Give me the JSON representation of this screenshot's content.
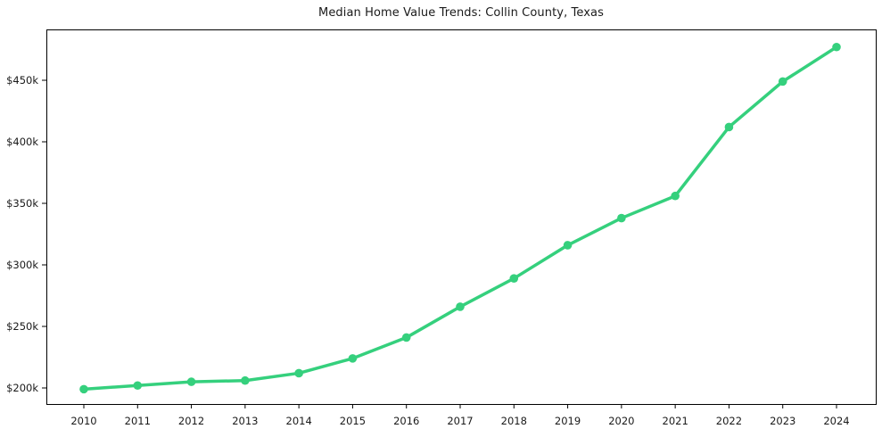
{
  "window": {
    "background_color": "#ffffff"
  },
  "chart_data": {
    "type": "line",
    "title": "Median Home Value Trends: Collin County, Texas",
    "xlabel": "",
    "ylabel": "",
    "categories": [
      "2010",
      "2011",
      "2012",
      "2013",
      "2014",
      "2015",
      "2016",
      "2017",
      "2018",
      "2019",
      "2020",
      "2021",
      "2022",
      "2023",
      "2024"
    ],
    "series": [
      {
        "name": "Median Home Value",
        "values": [
          199,
          202,
          205,
          206,
          212,
          224,
          241,
          266,
          289,
          316,
          338,
          356,
          412,
          449,
          477
        ]
      }
    ],
    "values_unit": "USD thousands",
    "y_ticks": [
      {
        "value": 200,
        "label": "$200k"
      },
      {
        "value": 250,
        "label": "$250k"
      },
      {
        "value": 300,
        "label": "$300k"
      },
      {
        "value": 350,
        "label": "$350k"
      },
      {
        "value": 400,
        "label": "$400k"
      },
      {
        "value": 450,
        "label": "$450k"
      }
    ],
    "ylim": [
      187,
      491
    ],
    "grid": false,
    "legend": "none",
    "marker": "circle",
    "line_color": "#35d07d",
    "axis_color": "#000000",
    "text_color": "#1a1a1a"
  }
}
